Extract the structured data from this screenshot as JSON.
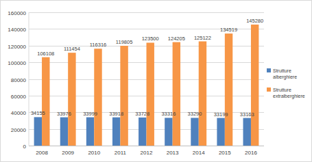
{
  "chart_data": {
    "type": "bar",
    "categories": [
      "2008",
      "2009",
      "2010",
      "2011",
      "2012",
      "2013",
      "2014",
      "2015",
      "2016"
    ],
    "series": [
      {
        "name": "Strutture alberghiere",
        "color": "#4f81bd",
        "values": [
          34155,
          33976,
          33999,
          33918,
          33728,
          33316,
          33290,
          33199,
          33163
        ]
      },
      {
        "name": "Strutture extralberghiere",
        "color": "#f79646",
        "values": [
          106108,
          111454,
          116316,
          119805,
          123500,
          124205,
          125122,
          134519,
          145280
        ]
      }
    ],
    "ylim": [
      0,
      160000
    ],
    "yticks": [
      0,
      20000,
      40000,
      60000,
      80000,
      100000,
      120000,
      140000,
      160000
    ],
    "grid": true,
    "legend": "right",
    "data_labels": true
  }
}
